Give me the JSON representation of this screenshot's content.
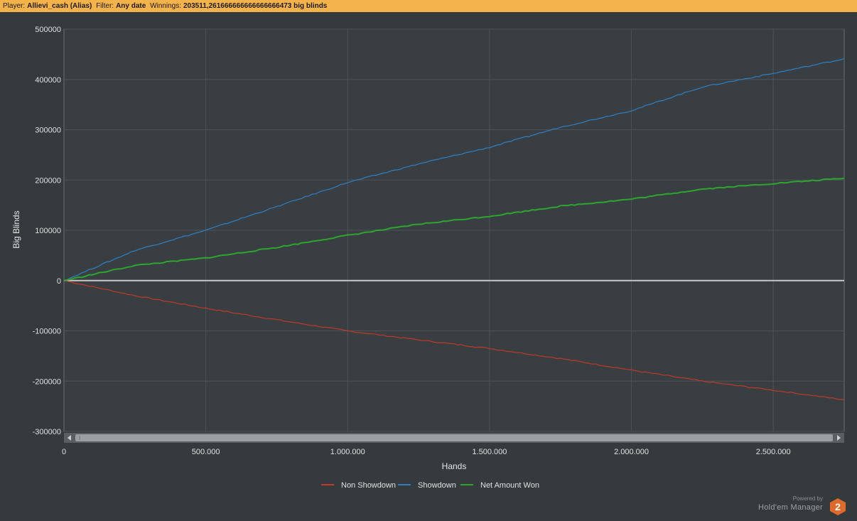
{
  "header": {
    "player_label": "Player:",
    "player_value": "Allievi_cash (Alias)",
    "filter_label": "Filter:",
    "filter_value": "Any date",
    "winnings_label": "Winnings:",
    "winnings_value": "203511,261666666666666666473 big blinds"
  },
  "colors": {
    "header_bg": "#f4b24a",
    "background": "#353a3d",
    "non_showdown": "#c0392b",
    "showdown": "#2f7fc0",
    "net_won": "#2ea52e"
  },
  "branding": {
    "powered_by": "Powered by",
    "name": "Hold'em Manager",
    "logo_text": "2",
    "logo_color": "#e06a2c"
  },
  "chart_data": {
    "type": "line",
    "xlabel": "Hands",
    "ylabel": "Big Blinds",
    "xlim": [
      0,
      2750000
    ],
    "ylim": [
      -300000,
      500000
    ],
    "x_ticks": [
      0,
      500000,
      1000000,
      1500000,
      2000000,
      2500000
    ],
    "x_tick_labels": [
      "0",
      "500.000",
      "1.000.000",
      "1.500.000",
      "2.000.000",
      "2.500.000"
    ],
    "y_ticks": [
      500000,
      400000,
      300000,
      200000,
      100000,
      0,
      -100000,
      -200000,
      -300000
    ],
    "y_tick_labels": [
      "500000",
      "400000",
      "300000",
      "200000",
      "100000",
      "0",
      "-100000",
      "-200000",
      "-300000"
    ],
    "grid": true,
    "legend_position": "bottom-center",
    "scrollbar": true,
    "series": [
      {
        "name": "Non Showdown",
        "color": "#c0392b",
        "x": [
          0,
          250000,
          500000,
          750000,
          1000000,
          1250000,
          1500000,
          1750000,
          2000000,
          2250000,
          2500000,
          2750000
        ],
        "values": [
          0,
          -30000,
          -55000,
          -78000,
          -100000,
          -118000,
          -135000,
          -155000,
          -178000,
          -200000,
          -218000,
          -237000
        ]
      },
      {
        "name": "Showdown",
        "color": "#2f7fc0",
        "x": [
          0,
          250000,
          500000,
          750000,
          1000000,
          1250000,
          1500000,
          1750000,
          2000000,
          2250000,
          2500000,
          2750000
        ],
        "values": [
          0,
          60000,
          100000,
          147000,
          195000,
          232000,
          265000,
          305000,
          338000,
          385000,
          412000,
          441000
        ]
      },
      {
        "name": "Net Amount Won",
        "color": "#2ea52e",
        "x": [
          0,
          250000,
          500000,
          750000,
          1000000,
          1250000,
          1500000,
          1750000,
          2000000,
          2250000,
          2500000,
          2750000
        ],
        "values": [
          0,
          30000,
          45000,
          66000,
          90000,
          112000,
          128000,
          148000,
          162000,
          182000,
          193000,
          203511
        ]
      }
    ]
  }
}
